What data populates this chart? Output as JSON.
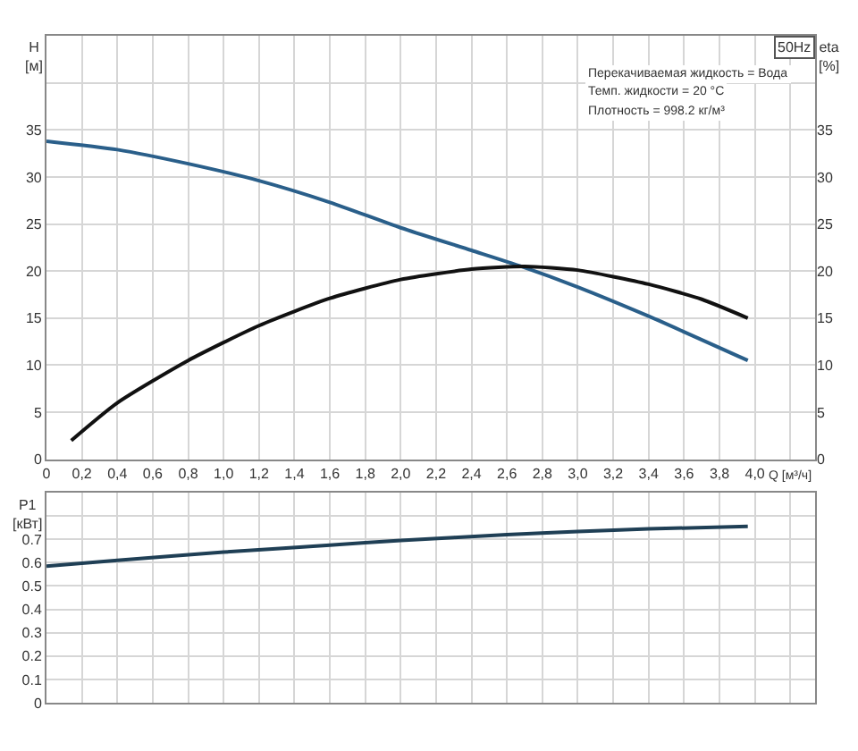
{
  "chart_data": [
    {
      "type": "line",
      "xlabel": "Q [м³/ч]",
      "ylabel": "H\n[м]",
      "y2label": "eta\n[%]",
      "annotations": [
        "50Hz",
        "Перекачиваемая жидкость = Вода",
        "Темп. жидкости = 20 °C",
        "Плотность = 998.2 кг/м³"
      ],
      "series": [
        {
          "color": "#2a5f8a",
          "x": [
            0,
            0.4,
            0.8,
            1.2,
            1.6,
            2.0,
            2.4,
            2.68,
            3.0,
            3.4,
            3.96
          ],
          "values": [
            33.8,
            32.9,
            31.4,
            29.6,
            27.3,
            24.6,
            22.2,
            20.5,
            18.3,
            15.2,
            10.5
          ]
        },
        {
          "color": "#111111",
          "axis": "y2",
          "x": [
            0.14,
            0.4,
            0.8,
            1.2,
            1.6,
            2.0,
            2.4,
            2.7,
            3.0,
            3.4,
            3.7,
            3.96
          ],
          "values": [
            2,
            6,
            10.5,
            14.2,
            17.1,
            19.1,
            20.2,
            20.5,
            20.1,
            18.6,
            17,
            15
          ]
        }
      ],
      "xlim": [
        0,
        4.34
      ],
      "xticks": [
        0,
        {
          "value": 0.2,
          "label": "0,2"
        },
        {
          "value": 0.4,
          "label": "0,4"
        },
        {
          "value": 0.6,
          "label": "0,6"
        },
        {
          "value": 0.8,
          "label": "0,8"
        },
        {
          "value": 1.0,
          "label": "1,0"
        },
        {
          "value": 1.2,
          "label": "1,2"
        },
        {
          "value": 1.4,
          "label": "1,4"
        },
        {
          "value": 1.6,
          "label": "1,6"
        },
        {
          "value": 1.8,
          "label": "1,8"
        },
        {
          "value": 2.0,
          "label": "2,0"
        },
        {
          "value": 2.2,
          "label": "2,2"
        },
        {
          "value": 2.4,
          "label": "2,4"
        },
        {
          "value": 2.6,
          "label": "2,6"
        },
        {
          "value": 2.8,
          "label": "2,8"
        },
        {
          "value": 3.0,
          "label": "3,0"
        },
        {
          "value": 3.2,
          "label": "3,2"
        },
        {
          "value": 3.4,
          "label": "3,4"
        },
        {
          "value": 3.6,
          "label": "3,6"
        },
        {
          "value": 3.8,
          "label": "3,8"
        },
        {
          "value": 4.0,
          "label": "4,0"
        },
        {
          "value": 4.2,
          "label": null
        }
      ],
      "ylim": [
        0,
        45
      ],
      "yticks": [
        0,
        5,
        10,
        15,
        20,
        25,
        30,
        35,
        {
          "value": 40,
          "label": null
        },
        {
          "value": 45,
          "label": null
        }
      ],
      "y2lim": [
        0,
        45
      ],
      "y2ticks": [
        0,
        5,
        10,
        15,
        20,
        25,
        30,
        35
      ],
      "grid": true,
      "marker": "none",
      "line_style": "solid"
    },
    {
      "type": "line",
      "ylabel": "P1\n[кВт]",
      "series": [
        {
          "color": "#1f3f55",
          "x": [
            0,
            0.4,
            1.0,
            1.6,
            2.0,
            2.6,
            3.0,
            3.4,
            3.96
          ],
          "values": [
            0.585,
            0.61,
            0.645,
            0.675,
            0.695,
            0.72,
            0.733,
            0.745,
            0.755
          ]
        }
      ],
      "xlim": [
        0,
        4.34
      ],
      "xticks": [
        {
          "value": 0,
          "label": null
        },
        {
          "value": 0.2,
          "label": null
        },
        {
          "value": 0.4,
          "label": null
        },
        {
          "value": 0.6,
          "label": null
        },
        {
          "value": 0.8,
          "label": null
        },
        {
          "value": 1.0,
          "label": null
        },
        {
          "value": 1.2,
          "label": null
        },
        {
          "value": 1.4,
          "label": null
        },
        {
          "value": 1.6,
          "label": null
        },
        {
          "value": 1.8,
          "label": null
        },
        {
          "value": 2.0,
          "label": null
        },
        {
          "value": 2.2,
          "label": null
        },
        {
          "value": 2.4,
          "label": null
        },
        {
          "value": 2.6,
          "label": null
        },
        {
          "value": 2.8,
          "label": null
        },
        {
          "value": 3.0,
          "label": null
        },
        {
          "value": 3.2,
          "label": null
        },
        {
          "value": 3.4,
          "label": null
        },
        {
          "value": 3.6,
          "label": null
        },
        {
          "value": 3.8,
          "label": null
        },
        {
          "value": 4.0,
          "label": null
        },
        {
          "value": 4.2,
          "label": null
        }
      ],
      "ylim": [
        0,
        0.9
      ],
      "yticks": [
        0,
        0.1,
        0.2,
        0.3,
        0.4,
        0.5,
        0.6,
        0.7,
        {
          "value": 0.8,
          "label": null
        }
      ],
      "tick_labels": "y",
      "grid": true,
      "marker": "none",
      "line_style": "solid"
    }
  ]
}
